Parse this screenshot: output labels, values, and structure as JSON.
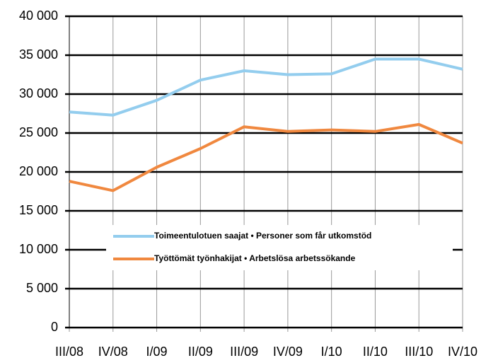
{
  "chart_data": {
    "type": "line",
    "categories": [
      "III/08",
      "IV/08",
      "I/09",
      "II/09",
      "III/09",
      "IV/09",
      "I/10",
      "II/10",
      "III/10",
      "IV/10"
    ],
    "series": [
      {
        "name": "Toimeentulotuen saajat • Personer som får utkomstöd",
        "color": "#93cdee",
        "values": [
          27700,
          27300,
          29200,
          31800,
          33000,
          32500,
          32600,
          34500,
          34500,
          33200
        ]
      },
      {
        "name": "Työttömät työnhakijat • Arbetslösa arbetssökande",
        "color": "#f0883f",
        "values": [
          18800,
          17600,
          20600,
          23000,
          25800,
          25200,
          25400,
          25200,
          26100,
          23700
        ]
      }
    ],
    "ylim": [
      0,
      40000
    ],
    "yticks": [
      0,
      {
        "value": 5000,
        "label": "5 000"
      },
      {
        "value": 10000,
        "label": "10 000"
      },
      {
        "value": 15000,
        "label": "15 000"
      },
      {
        "value": 20000,
        "label": "20 000"
      },
      {
        "value": 25000,
        "label": "25 000"
      },
      {
        "value": 30000,
        "label": "30 000"
      },
      {
        "value": 35000,
        "label": "35 000"
      },
      {
        "value": 40000,
        "label": "40 000"
      }
    ],
    "grid": true
  }
}
